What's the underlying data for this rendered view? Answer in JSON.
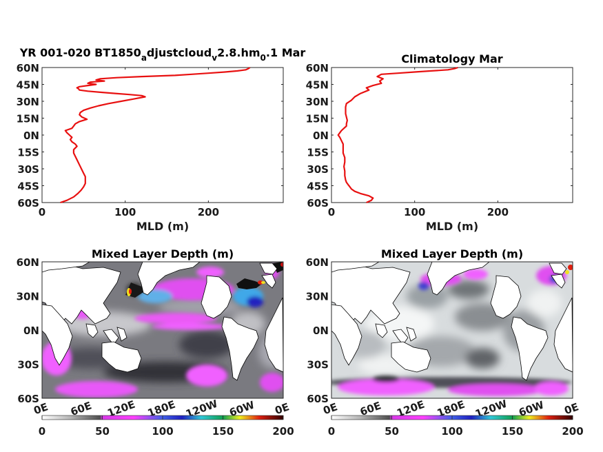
{
  "chart_data": [
    {
      "type": "line",
      "title": "YR 001-020 BT1850_adjustcloud_v2.8.hm_0.1 Mar",
      "title_parts": [
        "YR 001-020 BT1850",
        "a",
        "djustcloud",
        "v",
        "2.8.hm",
        "0",
        ".1 Mar"
      ],
      "xlabel": "MLD (m)",
      "ylabel": "",
      "xlim": [
        0,
        290
      ],
      "ylim": [
        -60,
        60
      ],
      "xticks": [
        "0",
        "100",
        "200"
      ],
      "yticks": [
        "60N",
        "45N",
        "30N",
        "15N",
        "0N",
        "15S",
        "30S",
        "45S",
        "60S"
      ],
      "color": "#e81010",
      "series": [
        {
          "lat": [
            -60,
            -58,
            -55,
            -52,
            -49,
            -46,
            -43,
            -40,
            -37,
            -34,
            -31,
            -28,
            -25,
            -22,
            -19,
            -16,
            -13,
            -10,
            -8,
            -6,
            -4,
            -2,
            0,
            2,
            4,
            6,
            8,
            10,
            12,
            14,
            16,
            18,
            20,
            22,
            24,
            26,
            28,
            30,
            32,
            34,
            35,
            36,
            37,
            38,
            39,
            40,
            41,
            42,
            43,
            44,
            45,
            46,
            47,
            48,
            49,
            50,
            51,
            52,
            53,
            54,
            55,
            56,
            57,
            58,
            59,
            60
          ],
          "mld": [
            22,
            30,
            38,
            43,
            47,
            50,
            52,
            52,
            52,
            50,
            48,
            46,
            44,
            42,
            40,
            38,
            38,
            42,
            40,
            36,
            34,
            36,
            33,
            30,
            28,
            36,
            38,
            40,
            45,
            54,
            48,
            45,
            46,
            50,
            58,
            68,
            80,
            95,
            110,
            124,
            120,
            105,
            88,
            70,
            55,
            45,
            44,
            42,
            45,
            55,
            65,
            55,
            58,
            75,
            65,
            70,
            90,
            120,
            160,
            180,
            200,
            220,
            235,
            245,
            248,
            250
          ]
        }
      ]
    },
    {
      "type": "line",
      "title": "Climatology Mar",
      "xlabel": "MLD (m)",
      "ylabel": "",
      "xlim": [
        0,
        290
      ],
      "ylim": [
        -60,
        60
      ],
      "xticks": [
        "0",
        "100",
        "200"
      ],
      "yticks": [
        "60N",
        "45N",
        "30N",
        "15N",
        "0N",
        "15S",
        "30S",
        "45S",
        "60S"
      ],
      "color": "#e81010",
      "series": [
        {
          "lat": [
            -60,
            -58,
            -56,
            -54,
            -52,
            -50,
            -48,
            -46,
            -44,
            -42,
            -40,
            -36,
            -32,
            -28,
            -24,
            -20,
            -16,
            -12,
            -8,
            -5,
            -2,
            0,
            2,
            4,
            6,
            8,
            10,
            13,
            16,
            19,
            22,
            25,
            28,
            31,
            34,
            37,
            40,
            42,
            44,
            46,
            48,
            50,
            52,
            54,
            55,
            56,
            57,
            58,
            59,
            60
          ],
          "mld": [
            42,
            48,
            50,
            45,
            35,
            28,
            24,
            22,
            20,
            18,
            17,
            16,
            16,
            15,
            16,
            16,
            14,
            14,
            14,
            12,
            10,
            8,
            10,
            12,
            15,
            18,
            18,
            19,
            18,
            17,
            17,
            17,
            18,
            24,
            28,
            35,
            45,
            42,
            50,
            60,
            58,
            62,
            55,
            60,
            80,
            100,
            120,
            140,
            148,
            152
          ]
        }
      ]
    },
    {
      "type": "heatmap",
      "title": "Mixed Layer Depth (m)",
      "yticks": [
        "60N",
        "30N",
        "0N",
        "30S",
        "60S"
      ],
      "xticks": [
        "0E",
        "60E",
        "120E",
        "180E",
        "120W",
        "60W",
        "0E"
      ],
      "colorbar_ticks": [
        "0",
        "50",
        "100",
        "150",
        "200"
      ],
      "clim": [
        0,
        200
      ]
    },
    {
      "type": "heatmap",
      "title": "Mixed Layer Depth (m)",
      "yticks": [
        "60N",
        "30N",
        "0N",
        "30S",
        "60S"
      ],
      "xticks": [
        "0E",
        "60E",
        "120E",
        "180E",
        "120W",
        "60W",
        "0E"
      ],
      "colorbar_ticks": [
        "0",
        "50",
        "100",
        "150",
        "200"
      ],
      "clim": [
        0,
        200
      ]
    }
  ]
}
